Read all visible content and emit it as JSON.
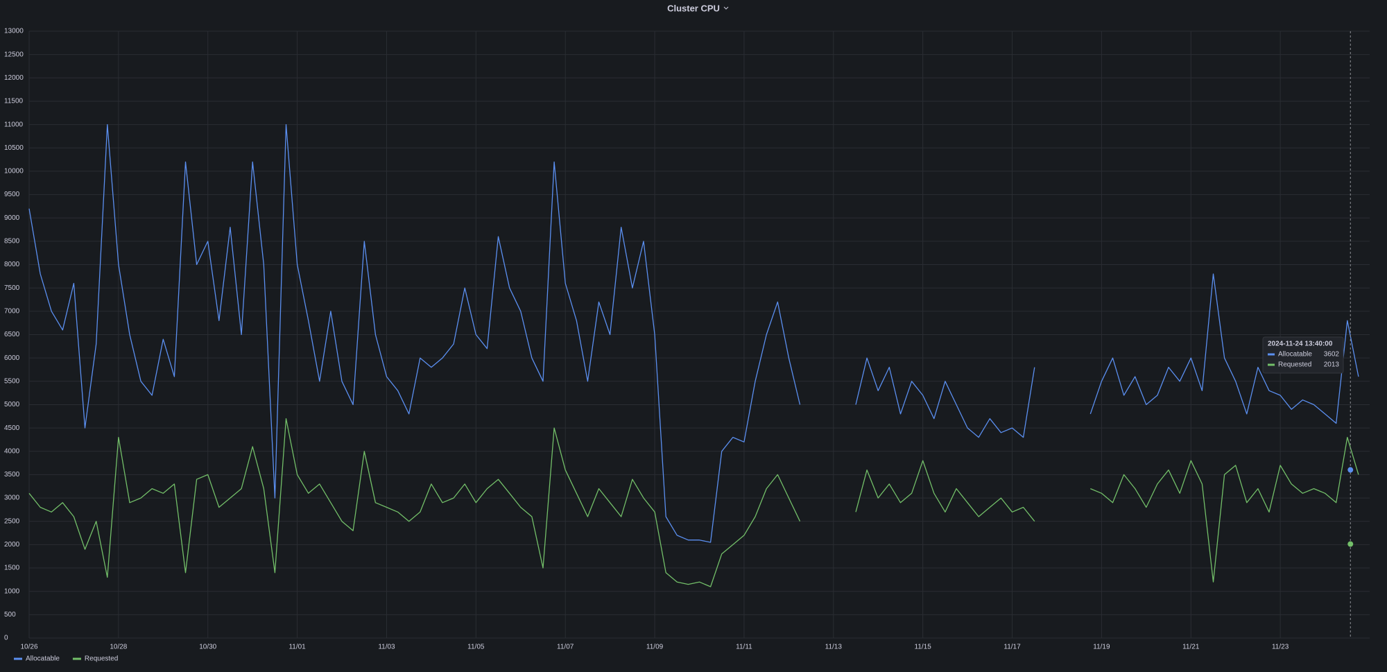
{
  "chart_data": {
    "type": "line",
    "title": "Cluster CPU",
    "x": [
      "2024-10-26 00:00",
      "2024-10-26 06:00",
      "2024-10-26 12:00",
      "2024-10-26 18:00",
      "2024-10-27 00:00",
      "2024-10-27 06:00",
      "2024-10-27 12:00",
      "2024-10-27 18:00",
      "2024-10-28 00:00",
      "2024-10-28 06:00",
      "2024-10-28 12:00",
      "2024-10-28 18:00",
      "2024-10-29 00:00",
      "2024-10-29 06:00",
      "2024-10-29 12:00",
      "2024-10-29 18:00",
      "2024-10-30 00:00",
      "2024-10-30 06:00",
      "2024-10-30 12:00",
      "2024-10-30 18:00",
      "2024-10-31 00:00",
      "2024-10-31 06:00",
      "2024-10-31 12:00",
      "2024-10-31 18:00",
      "2024-11-01 00:00",
      "2024-11-01 06:00",
      "2024-11-01 12:00",
      "2024-11-01 18:00",
      "2024-11-02 00:00",
      "2024-11-02 06:00",
      "2024-11-02 12:00",
      "2024-11-02 18:00",
      "2024-11-03 00:00",
      "2024-11-03 06:00",
      "2024-11-03 12:00",
      "2024-11-03 18:00",
      "2024-11-04 00:00",
      "2024-11-04 06:00",
      "2024-11-04 12:00",
      "2024-11-04 18:00",
      "2024-11-05 00:00",
      "2024-11-05 06:00",
      "2024-11-05 12:00",
      "2024-11-05 18:00",
      "2024-11-06 00:00",
      "2024-11-06 06:00",
      "2024-11-06 12:00",
      "2024-11-06 18:00",
      "2024-11-07 00:00",
      "2024-11-07 06:00",
      "2024-11-07 12:00",
      "2024-11-07 18:00",
      "2024-11-08 00:00",
      "2024-11-08 06:00",
      "2024-11-08 12:00",
      "2024-11-08 18:00",
      "2024-11-09 00:00",
      "2024-11-09 06:00",
      "2024-11-09 12:00",
      "2024-11-09 18:00",
      "2024-11-10 00:00",
      "2024-11-10 06:00",
      "2024-11-10 12:00",
      "2024-11-10 18:00",
      "2024-11-11 00:00",
      "2024-11-11 06:00",
      "2024-11-11 12:00",
      "2024-11-11 18:00",
      "2024-11-12 00:00",
      "2024-11-12 06:00",
      "2024-11-12 12:00",
      "2024-11-12 18:00",
      "2024-11-13 00:00",
      "2024-11-13 06:00",
      "2024-11-13 12:00",
      "2024-11-13 18:00",
      "2024-11-14 00:00",
      "2024-11-14 06:00",
      "2024-11-14 12:00",
      "2024-11-14 18:00",
      "2024-11-15 00:00",
      "2024-11-15 06:00",
      "2024-11-15 12:00",
      "2024-11-15 18:00",
      "2024-11-16 00:00",
      "2024-11-16 06:00",
      "2024-11-16 12:00",
      "2024-11-16 18:00",
      "2024-11-17 00:00",
      "2024-11-17 06:00",
      "2024-11-17 12:00",
      "2024-11-17 18:00",
      "2024-11-18 00:00",
      "2024-11-18 06:00",
      "2024-11-18 12:00",
      "2024-11-18 18:00",
      "2024-11-19 00:00",
      "2024-11-19 06:00",
      "2024-11-19 12:00",
      "2024-11-19 18:00",
      "2024-11-20 00:00",
      "2024-11-20 06:00",
      "2024-11-20 12:00",
      "2024-11-20 18:00",
      "2024-11-21 00:00",
      "2024-11-21 06:00",
      "2024-11-21 12:00",
      "2024-11-21 18:00",
      "2024-11-22 00:00",
      "2024-11-22 06:00",
      "2024-11-22 12:00",
      "2024-11-22 18:00",
      "2024-11-23 00:00",
      "2024-11-23 06:00",
      "2024-11-23 12:00",
      "2024-11-23 18:00",
      "2024-11-24 00:00",
      "2024-11-24 06:00",
      "2024-11-24 12:00",
      "2024-11-24 18:00"
    ],
    "series": [
      {
        "name": "Allocatable",
        "color": "#5b8ff0",
        "values": [
          9200,
          7800,
          7000,
          6600,
          7600,
          4500,
          6300,
          11000,
          8000,
          6500,
          5500,
          5200,
          6400,
          5600,
          10200,
          8000,
          8500,
          6800,
          8800,
          6500,
          10200,
          8000,
          3000,
          11000,
          8000,
          6800,
          5500,
          7000,
          5500,
          5000,
          8500,
          6500,
          5600,
          5300,
          4800,
          6000,
          5800,
          6000,
          6300,
          7500,
          6500,
          6200,
          8600,
          7500,
          7000,
          6000,
          5500,
          10200,
          7600,
          6800,
          5500,
          7200,
          6500,
          8800,
          7500,
          8500,
          6500,
          2600,
          2200,
          2100,
          2100,
          2050,
          4000,
          4300,
          4200,
          5500,
          6500,
          7200,
          6000,
          5000,
          null,
          null,
          null,
          null,
          5000,
          6000,
          5300,
          5800,
          4800,
          5500,
          5200,
          4700,
          5500,
          5000,
          4500,
          4300,
          4700,
          4400,
          4500,
          4300,
          5800,
          null,
          null,
          null,
          null,
          4800,
          5500,
          6000,
          5200,
          5600,
          5000,
          5200,
          5800,
          5500,
          6000,
          5300,
          7800,
          6000,
          5500,
          4800,
          5800,
          5300,
          5200,
          4900,
          5100,
          5000,
          4800,
          4600,
          6800,
          5600
        ]
      },
      {
        "name": "Requested",
        "color": "#73bf69",
        "values": [
          3100,
          2800,
          2700,
          2900,
          2600,
          1900,
          2500,
          1300,
          4300,
          2900,
          3000,
          3200,
          3100,
          3300,
          1400,
          3400,
          3500,
          2800,
          3000,
          3200,
          4100,
          3200,
          1400,
          4700,
          3500,
          3100,
          3300,
          2900,
          2500,
          2300,
          4000,
          2900,
          2800,
          2700,
          2500,
          2700,
          3300,
          2900,
          3000,
          3300,
          2900,
          3200,
          3400,
          3100,
          2800,
          2600,
          1500,
          4500,
          3600,
          3100,
          2600,
          3200,
          2900,
          2600,
          3400,
          3000,
          2700,
          1400,
          1200,
          1150,
          1200,
          1100,
          1800,
          2000,
          2200,
          2600,
          3200,
          3500,
          3000,
          2500,
          null,
          null,
          null,
          null,
          2700,
          3600,
          3000,
          3300,
          2900,
          3100,
          3800,
          3100,
          2700,
          3200,
          2900,
          2600,
          2800,
          3000,
          2700,
          2800,
          2500,
          null,
          null,
          null,
          null,
          3200,
          3100,
          2900,
          3500,
          3200,
          2800,
          3300,
          3600,
          3100,
          3800,
          3300,
          1200,
          3500,
          3700,
          2900,
          3200,
          2700,
          3700,
          3300,
          3100,
          3200,
          3100,
          2900,
          4300,
          3500
        ]
      }
    ],
    "xlim": [
      "2024-10-26 00:00",
      "2024-11-25 00:00"
    ],
    "xticks": [
      {
        "value": "2024-10-26 00:00",
        "label": "10/26"
      },
      {
        "value": "2024-10-28 00:00",
        "label": "10/28"
      },
      {
        "value": "2024-10-30 00:00",
        "label": "10/30"
      },
      {
        "value": "2024-11-01 00:00",
        "label": "11/01"
      },
      {
        "value": "2024-11-03 00:00",
        "label": "11/03"
      },
      {
        "value": "2024-11-05 00:00",
        "label": "11/05"
      },
      {
        "value": "2024-11-07 00:00",
        "label": "11/07"
      },
      {
        "value": "2024-11-09 00:00",
        "label": "11/09"
      },
      {
        "value": "2024-11-11 00:00",
        "label": "11/11"
      },
      {
        "value": "2024-11-13 00:00",
        "label": "11/13"
      },
      {
        "value": "2024-11-15 00:00",
        "label": "11/15"
      },
      {
        "value": "2024-11-17 00:00",
        "label": "11/17"
      },
      {
        "value": "2024-11-19 00:00",
        "label": "11/19"
      },
      {
        "value": "2024-11-21 00:00",
        "label": "11/21"
      },
      {
        "value": "2024-11-23 00:00",
        "label": "11/23"
      }
    ],
    "ylim": [
      0,
      13000
    ],
    "yticks": [
      0,
      500,
      1000,
      1500,
      2000,
      2500,
      3000,
      3500,
      4000,
      4500,
      5000,
      5500,
      6000,
      6500,
      7000,
      7500,
      8000,
      8500,
      9000,
      9500,
      10000,
      10500,
      11000,
      11500,
      12000,
      12500,
      13000
    ],
    "grid": true,
    "legend": "bottom-left",
    "tooltip": {
      "time": "2024-11-24 13:40:00",
      "items": [
        {
          "name": "Allocatable",
          "value": 3602
        },
        {
          "name": "Requested",
          "value": 2013
        }
      ]
    }
  }
}
